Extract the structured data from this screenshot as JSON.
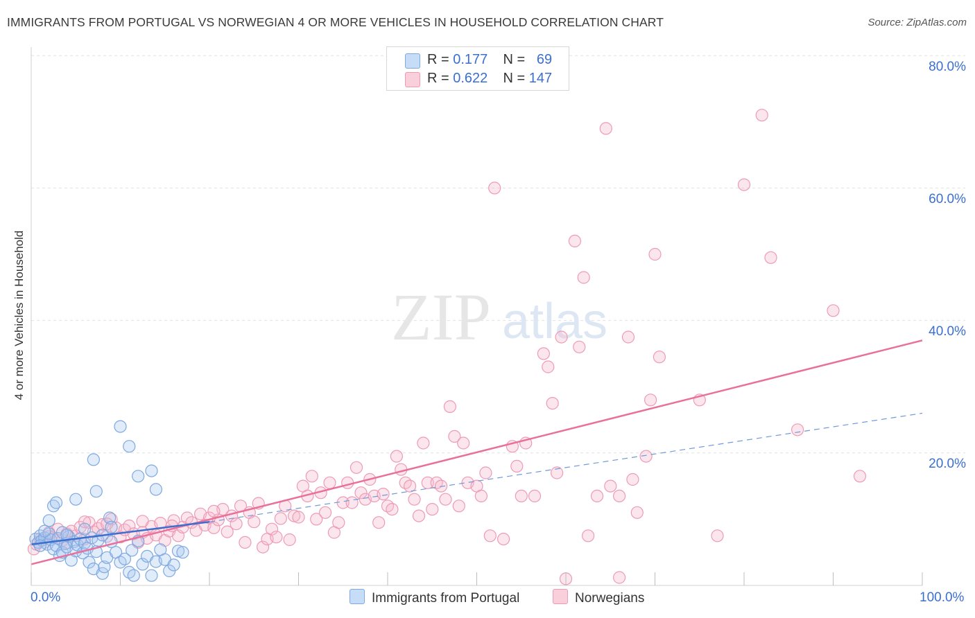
{
  "title": "IMMIGRANTS FROM PORTUGAL VS NORWEGIAN 4 OR MORE VEHICLES IN HOUSEHOLD CORRELATION CHART",
  "source": "Source: ZipAtlas.com",
  "watermark": {
    "zip": "ZIP",
    "atlas": "atlas"
  },
  "legend_top": [
    {
      "r_label": "R =",
      "r_value": "0.177",
      "n_label": "N =",
      "n_value": "69",
      "color": "#a9c8f2"
    },
    {
      "r_label": "R =",
      "r_value": "0.622",
      "n_label": "N =",
      "n_value": "147",
      "color": "#f5b8cc"
    }
  ],
  "legend_bottom": [
    {
      "label": "Immigrants from Portugal",
      "color": "#a9c8f2"
    },
    {
      "label": "Norwegians",
      "color": "#f5b8cc"
    }
  ],
  "x_tick_labels": {
    "min": "0.0%",
    "max": "100.0%"
  },
  "y_tick_labels": [
    "20.0%",
    "40.0%",
    "60.0%",
    "80.0%"
  ],
  "chart_data": {
    "type": "scatter",
    "title": "IMMIGRANTS FROM PORTUGAL VS NORWEGIAN 4 OR MORE VEHICLES IN HOUSEHOLD CORRELATION CHART",
    "xlabel": "",
    "ylabel": "4 or more Vehicles in Household",
    "xlim": [
      0,
      100
    ],
    "ylim": [
      0,
      80
    ],
    "x_ticks": [
      0,
      10,
      20,
      30,
      40,
      50,
      60,
      70,
      80,
      90,
      100
    ],
    "y_ticks": [
      20,
      40,
      60,
      80
    ],
    "grid": "horizontal dashed",
    "legend_position": "top-center",
    "series": [
      {
        "name": "Immigrants from Portugal",
        "color": "#a9c8f2",
        "line_color": "#3a6fd0",
        "r": 0.177,
        "n": 69,
        "trend": {
          "x": [
            0,
            20
          ],
          "y": [
            6.2,
            9.6
          ]
        },
        "trend_extended": {
          "x": [
            20,
            100
          ],
          "y": [
            9.6,
            26.0
          ]
        },
        "points": [
          [
            0.5,
            7.0
          ],
          [
            0.8,
            6.5
          ],
          [
            1.0,
            7.5
          ],
          [
            1.2,
            6.8
          ],
          [
            1.5,
            7.2
          ],
          [
            1.8,
            6.2
          ],
          [
            2.0,
            7.8
          ],
          [
            2.2,
            6.9
          ],
          [
            2.5,
            5.5
          ],
          [
            2.8,
            6.0
          ],
          [
            3.0,
            7.1
          ],
          [
            3.2,
            4.5
          ],
          [
            3.5,
            5.0
          ],
          [
            3.8,
            6.3
          ],
          [
            4.0,
            5.8
          ],
          [
            4.2,
            7.4
          ],
          [
            4.5,
            3.8
          ],
          [
            4.8,
            6.6
          ],
          [
            5.0,
            5.2
          ],
          [
            5.2,
            6.1
          ],
          [
            5.5,
            7.0
          ],
          [
            5.8,
            4.9
          ],
          [
            6.0,
            6.4
          ],
          [
            6.3,
            5.6
          ],
          [
            6.5,
            3.5
          ],
          [
            6.8,
            7.2
          ],
          [
            7.0,
            2.5
          ],
          [
            7.3,
            5.1
          ],
          [
            7.5,
            6.8
          ],
          [
            8.0,
            1.8
          ],
          [
            8.2,
            2.8
          ],
          [
            8.5,
            4.2
          ],
          [
            8.8,
            10.2
          ],
          [
            9.0,
            6.6
          ],
          [
            9.5,
            5.0
          ],
          [
            10.0,
            3.5
          ],
          [
            10.5,
            4.0
          ],
          [
            11.0,
            2.0
          ],
          [
            11.3,
            5.3
          ],
          [
            11.5,
            1.5
          ],
          [
            12.0,
            6.7
          ],
          [
            12.5,
            3.2
          ],
          [
            13.0,
            4.4
          ],
          [
            13.5,
            1.5
          ],
          [
            14.0,
            3.6
          ],
          [
            14.5,
            5.4
          ],
          [
            15.0,
            3.9
          ],
          [
            15.5,
            2.2
          ],
          [
            16.0,
            3.1
          ],
          [
            16.5,
            5.2
          ],
          [
            2.0,
            9.8
          ],
          [
            2.5,
            12.0
          ],
          [
            2.8,
            12.5
          ],
          [
            5.0,
            13.0
          ],
          [
            7.0,
            19.0
          ],
          [
            7.3,
            14.2
          ],
          [
            10.0,
            24.0
          ],
          [
            11.0,
            21.0
          ],
          [
            12.0,
            16.5
          ],
          [
            13.5,
            17.3
          ],
          [
            14.0,
            14.5
          ],
          [
            17.0,
            5.0
          ],
          [
            1.5,
            8.2
          ],
          [
            3.5,
            8.0
          ],
          [
            6.0,
            8.5
          ],
          [
            8.0,
            7.6
          ],
          [
            9.0,
            8.8
          ],
          [
            1.0,
            6.0
          ],
          [
            4.0,
            7.6
          ]
        ]
      },
      {
        "name": "Norwegians",
        "color": "#f5b8cc",
        "line_color": "#e8709a",
        "r": 0.622,
        "n": 147,
        "trend": {
          "x": [
            0,
            100
          ],
          "y": [
            3.2,
            37.0
          ]
        },
        "points": [
          [
            0.3,
            5.5
          ],
          [
            0.6,
            6.2
          ],
          [
            1.0,
            7.0
          ],
          [
            1.5,
            6.5
          ],
          [
            2.0,
            8.0
          ],
          [
            2.5,
            7.2
          ],
          [
            3.0,
            8.5
          ],
          [
            3.5,
            6.8
          ],
          [
            4.0,
            7.8
          ],
          [
            4.5,
            8.2
          ],
          [
            5.0,
            7.5
          ],
          [
            5.5,
            8.8
          ],
          [
            6.0,
            7.0
          ],
          [
            6.5,
            9.5
          ],
          [
            7.0,
            8.1
          ],
          [
            7.5,
            8.6
          ],
          [
            8.0,
            9.2
          ],
          [
            8.5,
            7.4
          ],
          [
            9.0,
            10.0
          ],
          [
            9.5,
            8.7
          ],
          [
            10.0,
            7.3
          ],
          [
            10.5,
            8.4
          ],
          [
            11.0,
            9.0
          ],
          [
            11.5,
            7.8
          ],
          [
            12.0,
            6.5
          ],
          [
            12.5,
            8.0
          ],
          [
            13.0,
            7.1
          ],
          [
            13.5,
            8.9
          ],
          [
            14.0,
            7.6
          ],
          [
            14.5,
            9.4
          ],
          [
            15.0,
            6.8
          ],
          [
            15.5,
            8.2
          ],
          [
            16.0,
            9.8
          ],
          [
            16.5,
            7.5
          ],
          [
            17.0,
            8.8
          ],
          [
            17.5,
            10.2
          ],
          [
            18.0,
            9.5
          ],
          [
            18.5,
            8.3
          ],
          [
            19.0,
            10.8
          ],
          [
            19.5,
            9.1
          ],
          [
            20.0,
            10.2
          ],
          [
            20.5,
            8.7
          ],
          [
            21.0,
            9.9
          ],
          [
            21.5,
            11.5
          ],
          [
            22.0,
            8.1
          ],
          [
            22.5,
            10.5
          ],
          [
            23.0,
            9.3
          ],
          [
            23.5,
            12.0
          ],
          [
            24.0,
            6.5
          ],
          [
            24.5,
            11.0
          ],
          [
            25.0,
            9.6
          ],
          [
            25.5,
            12.4
          ],
          [
            26.0,
            5.8
          ],
          [
            26.5,
            7.0
          ],
          [
            27.0,
            8.5
          ],
          [
            27.5,
            7.3
          ],
          [
            28.0,
            10.1
          ],
          [
            28.5,
            12.0
          ],
          [
            29.0,
            6.9
          ],
          [
            29.5,
            10.5
          ],
          [
            30.0,
            10.3
          ],
          [
            30.5,
            15.0
          ],
          [
            31.0,
            13.5
          ],
          [
            31.5,
            16.5
          ],
          [
            32.0,
            10.0
          ],
          [
            32.5,
            14.0
          ],
          [
            33.0,
            11.0
          ],
          [
            33.5,
            15.5
          ],
          [
            34.0,
            8.0
          ],
          [
            34.5,
            9.5
          ],
          [
            35.0,
            12.5
          ],
          [
            35.5,
            15.5
          ],
          [
            36.0,
            12.5
          ],
          [
            36.5,
            17.8
          ],
          [
            37.0,
            14.0
          ],
          [
            37.5,
            13.0
          ],
          [
            38.0,
            16.0
          ],
          [
            38.5,
            13.5
          ],
          [
            39.0,
            9.5
          ],
          [
            39.5,
            13.8
          ],
          [
            40.0,
            12.0
          ],
          [
            40.5,
            11.5
          ],
          [
            41.0,
            19.5
          ],
          [
            41.5,
            17.5
          ],
          [
            42.0,
            15.5
          ],
          [
            42.5,
            15.0
          ],
          [
            43.0,
            13.0
          ],
          [
            43.5,
            10.5
          ],
          [
            44.0,
            21.5
          ],
          [
            44.5,
            15.5
          ],
          [
            45.0,
            11.5
          ],
          [
            45.5,
            15.5
          ],
          [
            46.0,
            15.0
          ],
          [
            46.5,
            13.0
          ],
          [
            47.0,
            27.0
          ],
          [
            47.5,
            22.5
          ],
          [
            48.0,
            12.0
          ],
          [
            48.5,
            21.5
          ],
          [
            49.0,
            15.5
          ],
          [
            50.0,
            15.0
          ],
          [
            50.5,
            13.5
          ],
          [
            51.0,
            17.0
          ],
          [
            51.5,
            7.5
          ],
          [
            52.0,
            60.0
          ],
          [
            53.0,
            7.0
          ],
          [
            54.0,
            21.0
          ],
          [
            54.5,
            18.0
          ],
          [
            55.0,
            13.5
          ],
          [
            55.5,
            21.5
          ],
          [
            56.5,
            13.5
          ],
          [
            57.5,
            35.0
          ],
          [
            58.0,
            33.0
          ],
          [
            58.5,
            27.5
          ],
          [
            59.0,
            17.0
          ],
          [
            59.5,
            37.5
          ],
          [
            61.0,
            52.0
          ],
          [
            61.5,
            36.0
          ],
          [
            62.0,
            46.5
          ],
          [
            62.5,
            7.5
          ],
          [
            63.5,
            13.5
          ],
          [
            64.5,
            69.0
          ],
          [
            65.0,
            15.0
          ],
          [
            66.0,
            13.5
          ],
          [
            67.0,
            37.5
          ],
          [
            67.5,
            16.0
          ],
          [
            68.0,
            11.0
          ],
          [
            69.0,
            19.5
          ],
          [
            69.5,
            28.0
          ],
          [
            70.0,
            50.0
          ],
          [
            70.5,
            34.5
          ],
          [
            75.0,
            28.0
          ],
          [
            77.0,
            7.5
          ],
          [
            80.0,
            60.5
          ],
          [
            82.0,
            71.0
          ],
          [
            83.0,
            49.5
          ],
          [
            86.0,
            23.5
          ],
          [
            90.0,
            41.5
          ],
          [
            93.0,
            16.5
          ],
          [
            60.0,
            1.0
          ],
          [
            66.0,
            1.2
          ],
          [
            2.0,
            7.4
          ],
          [
            4.0,
            6.4
          ],
          [
            6.0,
            9.6
          ],
          [
            8.5,
            9.3
          ],
          [
            12.5,
            9.7
          ],
          [
            20.5,
            11.2
          ],
          [
            15.8,
            9.0
          ]
        ]
      }
    ]
  }
}
